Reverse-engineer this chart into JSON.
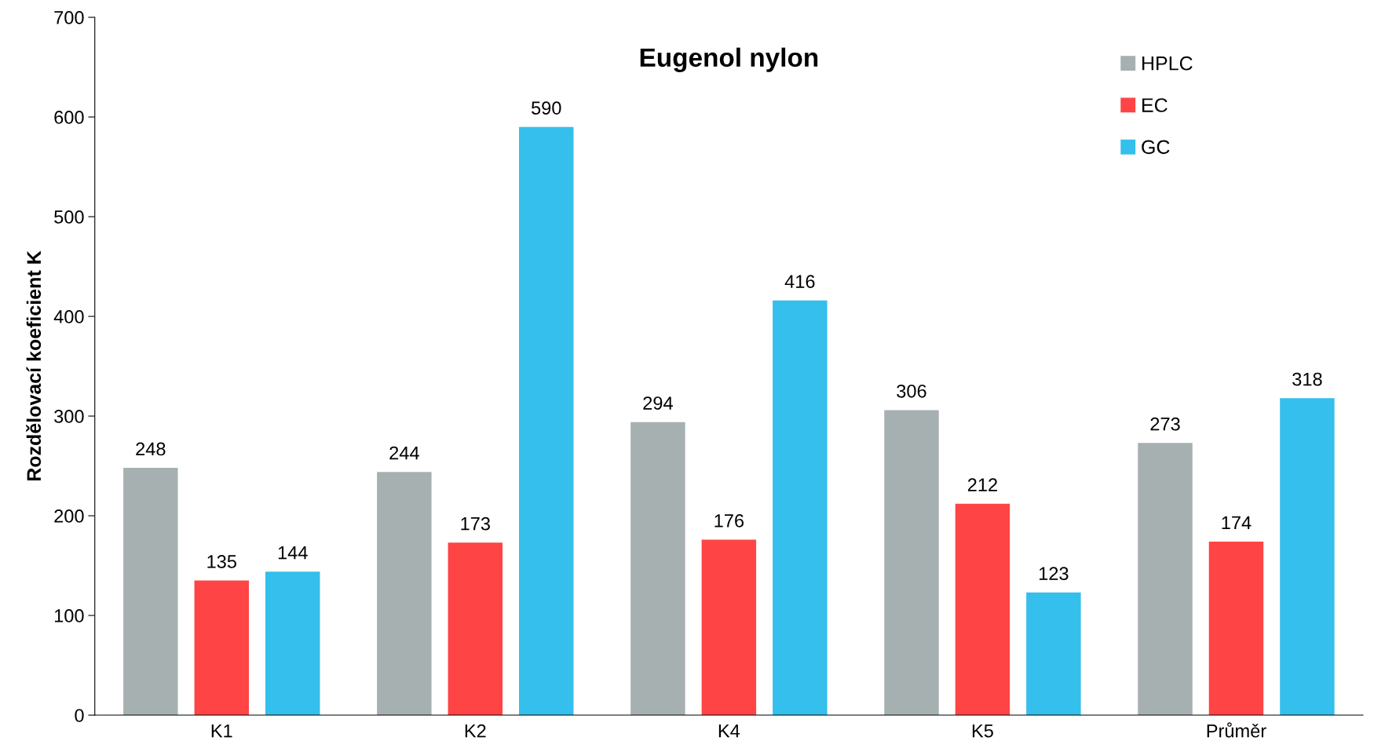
{
  "chart_data": {
    "type": "bar",
    "title": "Eugenol nylon",
    "ylabel": "Rozdělovací koeficient K",
    "categories": [
      "K1",
      "K2",
      "K4",
      "K5",
      "Průměr"
    ],
    "series": [
      {
        "name": "HPLC",
        "color": "#a7b0b1",
        "values": [
          248,
          244,
          294,
          306,
          273
        ]
      },
      {
        "name": "EC",
        "color": "#fe4444",
        "values": [
          135,
          173,
          176,
          212,
          174
        ]
      },
      {
        "name": "GC",
        "color": "#34bfec",
        "values": [
          144,
          590,
          416,
          123,
          318
        ]
      }
    ],
    "ylim": [
      0,
      700
    ],
    "yticks": [
      0,
      100,
      200,
      300,
      400,
      500,
      600,
      700
    ],
    "data_labels": true,
    "legend": "top right",
    "grid": false
  }
}
